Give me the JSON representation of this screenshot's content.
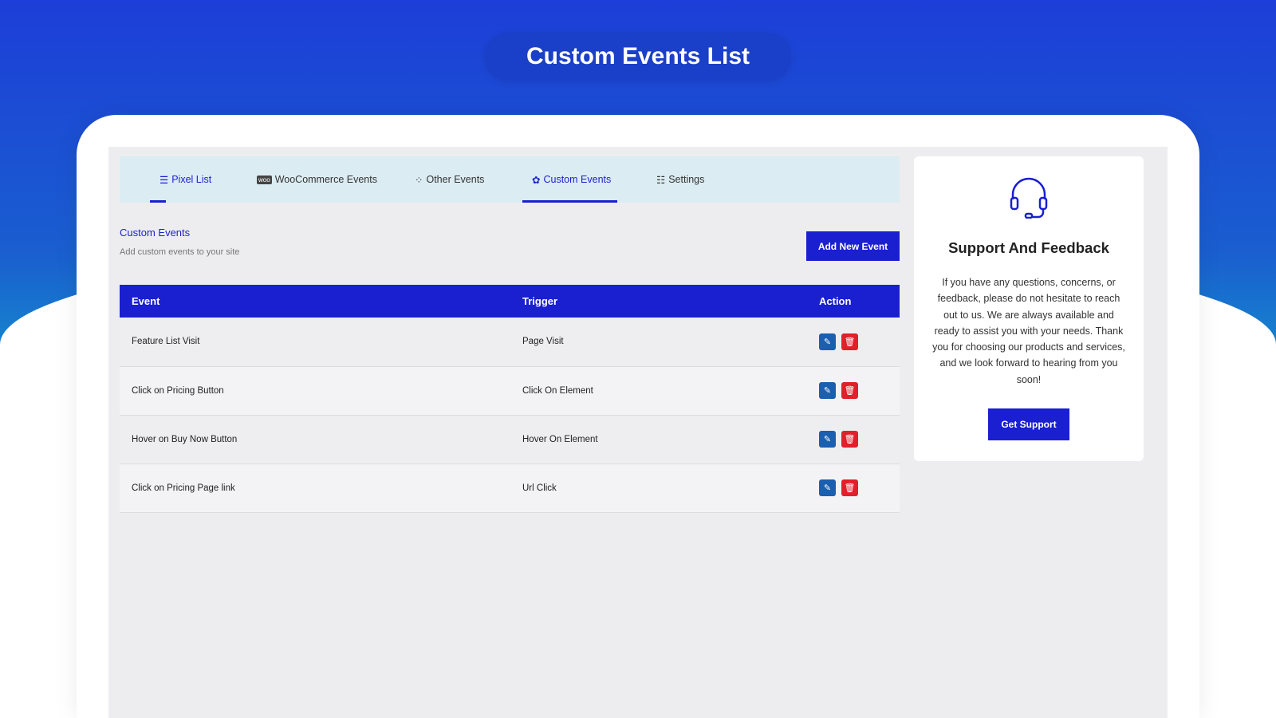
{
  "page_title": "Custom Events List",
  "tabs": [
    {
      "label": "Pixel List",
      "icon": "list-icon"
    },
    {
      "label": "WooCommerce Events",
      "icon": "woo-icon"
    },
    {
      "label": "Other Events",
      "icon": "shapes-icon"
    },
    {
      "label": "Custom Events",
      "icon": "puzzle-icon",
      "active": true
    },
    {
      "label": "Settings",
      "icon": "sliders-icon"
    }
  ],
  "section": {
    "title": "Custom Events",
    "subtitle": "Add custom events to your site",
    "add_button": "Add New Event"
  },
  "table": {
    "headers": [
      "Event",
      "Trigger",
      "Action"
    ],
    "rows": [
      {
        "event": "Feature List Visit",
        "trigger": "Page Visit"
      },
      {
        "event": "Click on Pricing Button",
        "trigger": "Click On Element"
      },
      {
        "event": "Hover on Buy Now Button",
        "trigger": "Hover On Element"
      },
      {
        "event": "Click on Pricing Page link",
        "trigger": "Url Click"
      }
    ]
  },
  "support": {
    "title": "Support And Feedback",
    "text": "If you have any questions, concerns, or feedback, please do not hesitate to reach out to us. We are always available and ready to assist you with your needs. Thank you for choosing our products and services, and we look forward to hearing from you soon!",
    "button": "Get Support"
  },
  "colors": {
    "primary": "#1a1fd0",
    "edit": "#1a5fb0",
    "delete": "#e0202a"
  }
}
